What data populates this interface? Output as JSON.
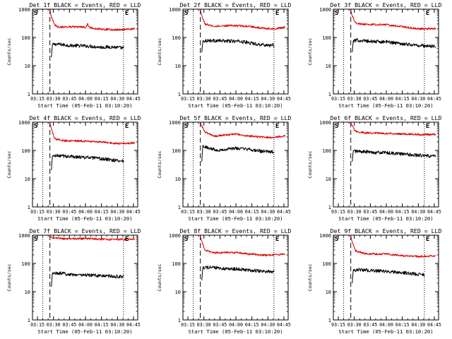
{
  "colors": {
    "events": "#000000",
    "lld": "#e00000",
    "axis": "#000000"
  },
  "chart_data": [
    {
      "type": "line",
      "title": "Det 1f BLACK = Events, RED = LLD",
      "xlabel": "Start Time (05-Feb-11 03:10:20)",
      "ylabel": "Counts/sec",
      "xticks": [
        "03:15",
        "03:30",
        "03:45",
        "04:00",
        "04:15",
        "04:30",
        "04:45"
      ],
      "yticks": [
        "1",
        "10",
        "100",
        "1000"
      ],
      "xlim": [
        "03:10:20",
        "04:49:00"
      ],
      "ylim": [
        1,
        1000
      ],
      "yscale": "log",
      "markers": {
        "dotted": [
          "03:20:00",
          "04:35:40"
        ],
        "dashed": [
          "03:26:40"
        ]
      },
      "corner_labels": [
        "S",
        "E"
      ],
      "series": [
        {
          "name": "BLACK = Events",
          "color": "black",
          "points": [
            [
              "03:28:00",
              20
            ],
            [
              "03:29:00",
              55
            ],
            [
              "03:33:00",
              58
            ],
            [
              "03:45:00",
              52
            ],
            [
              "04:00:00",
              50
            ],
            [
              "04:15:00",
              45
            ],
            [
              "04:25:00",
              46
            ],
            [
              "04:36:00",
              42
            ]
          ]
        },
        {
          "name": "RED = LLD",
          "color": "red",
          "points": [
            [
              "03:26:40",
              1000
            ],
            [
              "03:27:40",
              600
            ],
            [
              "03:31:00",
              280
            ],
            [
              "03:35:00",
              230
            ],
            [
              "03:45:00",
              240
            ],
            [
              "04:00:00",
              230
            ],
            [
              "04:02:00",
              300
            ],
            [
              "04:04:00",
              220
            ],
            [
              "04:15:00",
              195
            ],
            [
              "04:30:00",
              185
            ],
            [
              "04:46:00",
              205
            ]
          ]
        }
      ]
    },
    {
      "type": "line",
      "title": "Det 2f BLACK = Events, RED = LLD",
      "xlabel": "Start Time (05-Feb-11 03:10:20)",
      "ylabel": "Counts/sec",
      "xticks": [
        "03:15",
        "03:30",
        "03:45",
        "04:00",
        "04:15",
        "04:30",
        "04:45"
      ],
      "yticks": [
        "1",
        "10",
        "100",
        "1000"
      ],
      "xlim": [
        "03:10:20",
        "04:49:00"
      ],
      "ylim": [
        1,
        1000
      ],
      "yscale": "log",
      "markers": {
        "dotted": [
          "03:20:00",
          "04:35:40"
        ],
        "dashed": [
          "03:26:40"
        ]
      },
      "corner_labels": [
        "S",
        "E"
      ],
      "series": [
        {
          "name": "BLACK = Events",
          "color": "black",
          "points": [
            [
              "03:28:00",
              30
            ],
            [
              "03:29:00",
              75
            ],
            [
              "03:33:00",
              78
            ],
            [
              "03:50:00",
              75
            ],
            [
              "04:05:00",
              72
            ],
            [
              "04:15:00",
              62
            ],
            [
              "04:25:00",
              55
            ],
            [
              "04:36:00",
              52
            ]
          ]
        },
        {
          "name": "RED = LLD",
          "color": "red",
          "points": [
            [
              "03:26:40",
              1000
            ],
            [
              "03:27:40",
              650
            ],
            [
              "03:31:00",
              300
            ],
            [
              "03:40:00",
              250
            ],
            [
              "03:55:00",
              265
            ],
            [
              "04:10:00",
              250
            ],
            [
              "04:25:00",
              215
            ],
            [
              "04:35:00",
              200
            ],
            [
              "04:46:00",
              225
            ]
          ]
        }
      ]
    },
    {
      "type": "line",
      "title": "Det 3f BLACK = Events, RED = LLD",
      "xlabel": "Start Time (05-Feb-11 03:10:20)",
      "ylabel": "Counts/sec",
      "xticks": [
        "03:15",
        "03:30",
        "03:45",
        "04:00",
        "04:15",
        "04:30",
        "04:45"
      ],
      "yticks": [
        "1",
        "10",
        "100",
        "1000"
      ],
      "xlim": [
        "03:10:20",
        "04:49:00"
      ],
      "ylim": [
        1,
        1000
      ],
      "yscale": "log",
      "markers": {
        "dotted": [
          "03:20:00",
          "04:35:40"
        ],
        "dashed": [
          "03:26:40"
        ]
      },
      "corner_labels": [
        "S",
        "E"
      ],
      "series": [
        {
          "name": "BLACK = Events",
          "color": "black",
          "points": [
            [
              "03:28:00",
              30
            ],
            [
              "03:29:00",
              75
            ],
            [
              "03:33:00",
              80
            ],
            [
              "03:45:00",
              72
            ],
            [
              "04:00:00",
              70
            ],
            [
              "04:15:00",
              60
            ],
            [
              "04:30:00",
              52
            ],
            [
              "04:46:00",
              48
            ]
          ]
        },
        {
          "name": "RED = LLD",
          "color": "red",
          "points": [
            [
              "03:26:40",
              1000
            ],
            [
              "03:27:40",
              620
            ],
            [
              "03:31:00",
              320
            ],
            [
              "03:40:00",
              290
            ],
            [
              "04:00:00",
              280
            ],
            [
              "04:15:00",
              240
            ],
            [
              "04:30:00",
              200
            ],
            [
              "04:46:00",
              205
            ]
          ]
        }
      ]
    },
    {
      "type": "line",
      "title": "Det 4f BLACK = Events, RED = LLD",
      "xlabel": "Start Time (05-Feb-11 03:10:20)",
      "ylabel": "Counts/sec",
      "xticks": [
        "03:15",
        "03:30",
        "03:45",
        "04:00",
        "04:15",
        "04:30",
        "04:45"
      ],
      "yticks": [
        "1",
        "10",
        "100",
        "1000"
      ],
      "xlim": [
        "03:10:20",
        "04:49:00"
      ],
      "ylim": [
        1,
        1000
      ],
      "yscale": "log",
      "markers": {
        "dotted": [
          "03:20:00",
          "04:35:40"
        ],
        "dashed": [
          "03:26:40"
        ]
      },
      "corner_labels": [
        "S",
        "E"
      ],
      "series": [
        {
          "name": "BLACK = Events",
          "color": "black",
          "points": [
            [
              "03:28:00",
              20
            ],
            [
              "03:29:00",
              62
            ],
            [
              "03:33:00",
              65
            ],
            [
              "03:50:00",
              60
            ],
            [
              "04:05:00",
              55
            ],
            [
              "04:20:00",
              48
            ],
            [
              "04:36:00",
              42
            ]
          ]
        },
        {
          "name": "RED = LLD",
          "color": "red",
          "points": [
            [
              "03:26:40",
              1000
            ],
            [
              "03:27:40",
              650
            ],
            [
              "03:31:00",
              260
            ],
            [
              "03:40:00",
              220
            ],
            [
              "04:00:00",
              215
            ],
            [
              "04:20:00",
              190
            ],
            [
              "04:30:00",
              175
            ],
            [
              "04:46:00",
              185
            ]
          ]
        }
      ]
    },
    {
      "type": "line",
      "title": "Det 5f BLACK = Events, RED = LLD",
      "xlabel": "Start Time (05-Feb-11 03:10:20)",
      "ylabel": "Counts/sec",
      "xticks": [
        "03:15",
        "03:30",
        "03:45",
        "04:00",
        "04:15",
        "04:30",
        "04:45"
      ],
      "yticks": [
        "1",
        "10",
        "100",
        "1000"
      ],
      "xlim": [
        "03:10:20",
        "04:49:00"
      ],
      "ylim": [
        1,
        1000
      ],
      "yscale": "log",
      "markers": {
        "dotted": [
          "03:20:00",
          "04:35:40"
        ],
        "dashed": [
          "03:26:40"
        ]
      },
      "corner_labels": [
        "S",
        "E"
      ],
      "series": [
        {
          "name": "BLACK = Events",
          "color": "black",
          "points": [
            [
              "03:28:00",
              40
            ],
            [
              "03:29:00",
              150
            ],
            [
              "03:34:00",
              120
            ],
            [
              "03:45:00",
              102
            ],
            [
              "04:00:00",
              120
            ],
            [
              "04:15:00",
              105
            ],
            [
              "04:25:00",
              92
            ],
            [
              "04:36:00",
              88
            ]
          ]
        },
        {
          "name": "RED = LLD",
          "color": "red",
          "points": [
            [
              "03:26:40",
              1000
            ],
            [
              "03:27:40",
              780
            ],
            [
              "03:31:00",
              450
            ],
            [
              "03:40:00",
              320
            ],
            [
              "04:00:00",
              380
            ],
            [
              "04:10:00",
              330
            ],
            [
              "04:25:00",
              295
            ],
            [
              "04:35:00",
              285
            ],
            [
              "04:46:00",
              330
            ]
          ]
        }
      ]
    },
    {
      "type": "line",
      "title": "Det 6f BLACK = Events, RED = LLD",
      "xlabel": "Start Time (05-Feb-11 03:10:20)",
      "ylabel": "Counts/sec",
      "xticks": [
        "03:15",
        "03:30",
        "03:45",
        "04:00",
        "04:15",
        "04:30",
        "04:45"
      ],
      "yticks": [
        "1",
        "10",
        "100",
        "1000"
      ],
      "xlim": [
        "03:10:20",
        "04:49:00"
      ],
      "ylim": [
        1,
        1000
      ],
      "yscale": "log",
      "markers": {
        "dotted": [
          "03:20:00",
          "04:35:40"
        ],
        "dashed": [
          "03:26:40"
        ]
      },
      "corner_labels": [
        "S",
        "E"
      ],
      "series": [
        {
          "name": "BLACK = Events",
          "color": "black",
          "points": [
            [
              "03:28:00",
              40
            ],
            [
              "03:29:00",
              95
            ],
            [
              "03:35:00",
              92
            ],
            [
              "03:50:00",
              85
            ],
            [
              "04:05:00",
              80
            ],
            [
              "04:20:00",
              72
            ],
            [
              "04:35:00",
              65
            ],
            [
              "04:46:00",
              62
            ]
          ]
        },
        {
          "name": "RED = LLD",
          "color": "red",
          "points": [
            [
              "03:26:40",
              1000
            ],
            [
              "03:27:40",
              780
            ],
            [
              "03:31:00",
              470
            ],
            [
              "03:40:00",
              420
            ],
            [
              "04:00:00",
              400
            ],
            [
              "04:20:00",
              380
            ],
            [
              "04:35:00",
              365
            ],
            [
              "04:46:00",
              370
            ]
          ]
        }
      ]
    },
    {
      "type": "line",
      "title": "Det 7f BLACK = Events, RED = LLD",
      "xlabel": "Start Time (05-Feb-11 03:10:20)",
      "ylabel": "Counts/sec",
      "xticks": [
        "03:15",
        "03:30",
        "03:45",
        "04:00",
        "04:15",
        "04:30",
        "04:45"
      ],
      "yticks": [
        "1",
        "10",
        "100",
        "1000"
      ],
      "xlim": [
        "03:10:20",
        "04:49:00"
      ],
      "ylim": [
        1,
        1000
      ],
      "yscale": "log",
      "markers": {
        "dotted": [
          "03:20:00",
          "04:35:40"
        ],
        "dashed": [
          "03:26:40"
        ]
      },
      "corner_labels": [
        "S",
        "E"
      ],
      "series": [
        {
          "name": "BLACK = Events",
          "color": "black",
          "points": [
            [
              "03:28:00",
              15
            ],
            [
              "03:29:00",
              45
            ],
            [
              "03:35:00",
              45
            ],
            [
              "03:50:00",
              40
            ],
            [
              "04:05:00",
              38
            ],
            [
              "04:20:00",
              36
            ],
            [
              "04:36:00",
              34
            ]
          ]
        },
        {
          "name": "RED = LLD",
          "color": "red",
          "points": [
            [
              "03:26:40",
              1000
            ],
            [
              "03:27:40",
              850
            ],
            [
              "03:31:00",
              780
            ],
            [
              "03:45:00",
              740
            ],
            [
              "04:00:00",
              760
            ],
            [
              "04:15:00",
              720
            ],
            [
              "04:30:00",
              700
            ],
            [
              "04:46:00",
              720
            ]
          ]
        }
      ]
    },
    {
      "type": "line",
      "title": "Det 8f BLACK = Events, RED = LLD",
      "xlabel": "Start Time (05-Feb-11 03:10:20)",
      "ylabel": "Counts/sec",
      "xticks": [
        "03:15",
        "03:30",
        "03:45",
        "04:00",
        "04:15",
        "04:30",
        "04:45"
      ],
      "yticks": [
        "1",
        "10",
        "100",
        "1000"
      ],
      "xlim": [
        "03:10:20",
        "04:49:00"
      ],
      "ylim": [
        1,
        1000
      ],
      "yscale": "log",
      "markers": {
        "dotted": [
          "03:20:00",
          "04:35:40"
        ],
        "dashed": [
          "03:26:40"
        ]
      },
      "corner_labels": [
        "S",
        "E"
      ],
      "series": [
        {
          "name": "BLACK = Events",
          "color": "black",
          "points": [
            [
              "03:28:00",
              25
            ],
            [
              "03:29:00",
              72
            ],
            [
              "03:35:00",
              72
            ],
            [
              "03:50:00",
              65
            ],
            [
              "04:05:00",
              62
            ],
            [
              "04:20:00",
              55
            ],
            [
              "04:36:00",
              50
            ]
          ]
        },
        {
          "name": "RED = LLD",
          "color": "red",
          "points": [
            [
              "03:26:40",
              1000
            ],
            [
              "03:27:40",
              640
            ],
            [
              "03:31:00",
              300
            ],
            [
              "03:40:00",
              240
            ],
            [
              "04:00:00",
              240
            ],
            [
              "04:15:00",
              210
            ],
            [
              "04:30:00",
              195
            ],
            [
              "04:46:00",
              210
            ]
          ]
        }
      ]
    },
    {
      "type": "line",
      "title": "Det 9f BLACK = Events, RED = LLD",
      "xlabel": "Start Time (05-Feb-11 03:10:20)",
      "ylabel": "Counts/sec",
      "xticks": [
        "03:15",
        "03:30",
        "03:45",
        "04:00",
        "04:15",
        "04:30",
        "04:45"
      ],
      "yticks": [
        "1",
        "10",
        "100",
        "1000"
      ],
      "xlim": [
        "03:10:20",
        "04:49:00"
      ],
      "ylim": [
        1,
        1000
      ],
      "yscale": "log",
      "markers": {
        "dotted": [
          "03:20:00",
          "04:35:40"
        ],
        "dashed": [
          "03:26:40"
        ]
      },
      "corner_labels": [
        "S",
        "E"
      ],
      "series": [
        {
          "name": "BLACK = Events",
          "color": "black",
          "points": [
            [
              "03:28:00",
              20
            ],
            [
              "03:29:00",
              58
            ],
            [
              "03:35:00",
              60
            ],
            [
              "03:50:00",
              55
            ],
            [
              "04:05:00",
              50
            ],
            [
              "04:20:00",
              45
            ],
            [
              "04:36:00",
              40
            ]
          ]
        },
        {
          "name": "RED = LLD",
          "color": "red",
          "points": [
            [
              "03:26:40",
              1000
            ],
            [
              "03:27:40",
              620
            ],
            [
              "03:31:00",
              280
            ],
            [
              "03:40:00",
              220
            ],
            [
              "04:00:00",
              215
            ],
            [
              "04:15:00",
              190
            ],
            [
              "04:30:00",
              175
            ],
            [
              "04:46:00",
              190
            ]
          ]
        }
      ]
    }
  ]
}
